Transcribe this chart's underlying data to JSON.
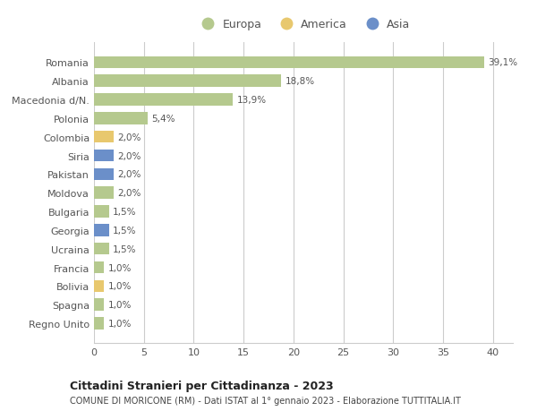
{
  "countries": [
    "Romania",
    "Albania",
    "Macedonia d/N.",
    "Polonia",
    "Colombia",
    "Siria",
    "Pakistan",
    "Moldova",
    "Bulgaria",
    "Georgia",
    "Ucraina",
    "Francia",
    "Bolivia",
    "Spagna",
    "Regno Unito"
  ],
  "values": [
    39.1,
    18.8,
    13.9,
    5.4,
    2.0,
    2.0,
    2.0,
    2.0,
    1.5,
    1.5,
    1.5,
    1.0,
    1.0,
    1.0,
    1.0
  ],
  "labels": [
    "39,1%",
    "18,8%",
    "13,9%",
    "5,4%",
    "2,0%",
    "2,0%",
    "2,0%",
    "2,0%",
    "1,5%",
    "1,5%",
    "1,5%",
    "1,0%",
    "1,0%",
    "1,0%",
    "1,0%"
  ],
  "continents": [
    "Europa",
    "Europa",
    "Europa",
    "Europa",
    "America",
    "Asia",
    "Asia",
    "Europa",
    "Europa",
    "Asia",
    "Europa",
    "Europa",
    "America",
    "Europa",
    "Europa"
  ],
  "colors": {
    "Europa": "#b5c98e",
    "America": "#e8c86e",
    "Asia": "#6b8fc9"
  },
  "xlim": [
    0,
    42
  ],
  "xticks": [
    0,
    5,
    10,
    15,
    20,
    25,
    30,
    35,
    40
  ],
  "title": "Cittadini Stranieri per Cittadinanza - 2023",
  "subtitle": "COMUNE DI MORICONE (RM) - Dati ISTAT al 1° gennaio 2023 - Elaborazione TUTTITALIA.IT",
  "background_color": "#ffffff",
  "grid_color": "#cccccc",
  "bar_height": 0.65,
  "label_color": "#555555",
  "ytick_color": "#555555"
}
